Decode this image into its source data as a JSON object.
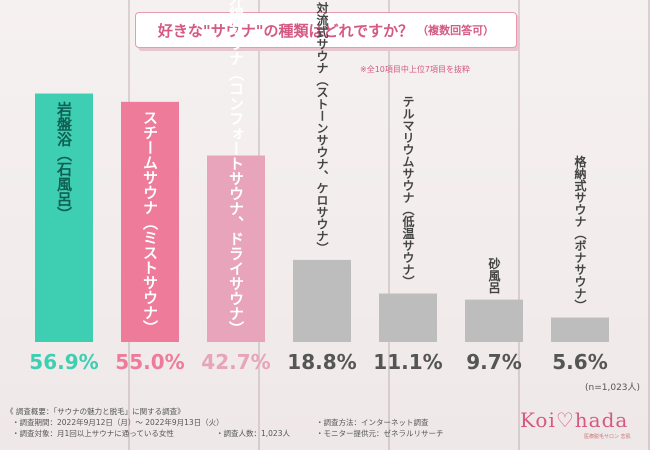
{
  "title": "好きな\"サウナ\"の種類はどれですか？",
  "title_sub": "（複数回答可）",
  "note": "※全10項目中上位7項目を抜粋",
  "sample": "(n=1,023人)",
  "colors": {
    "teal": "#3ecfb3",
    "pink": "#ee7b9a",
    "light_pink": "#e8a4ba",
    "gray": "#bdbdbd",
    "accent": "#d45a82"
  },
  "chart_data": {
    "type": "bar",
    "ylim": [
      0,
      60
    ],
    "categories": [
      "岩盤浴（石風呂）",
      "スチームサウナ（ミストサウナ）",
      "赤外線サウナ（コンフォートサウナ、ドライサウナ）",
      "対流式サウナ（ストーンサウナ、ケロサウナ）",
      "テルマリウムサウナ（低温サウナ）",
      "砂風呂",
      "格納式サウナ（ボナサウナ）"
    ],
    "values": [
      56.9,
      55.0,
      42.7,
      18.8,
      11.1,
      9.7,
      5.6
    ],
    "value_labels": [
      "56.9%",
      "55.0%",
      "42.7%",
      "18.8%",
      "11.1%",
      "9.7%",
      "5.6%"
    ],
    "bar_colors": [
      "teal",
      "pink",
      "light_pink",
      "gray",
      "gray",
      "gray",
      "gray"
    ]
  },
  "footer": {
    "heading": "《 調査概要：「サウナの魅力と脱毛」に関する調査》",
    "period": "・調査期間：2022年9月12日（月）〜 2022年9月13日（火）",
    "method": "・調査方法：インターネット調査",
    "target": "・調査対象：月1回以上サウナに通っている女性",
    "count": "・調査人数：1,023人",
    "provider": "・モニター提供元：ゼネラルリサーチ"
  },
  "logo": {
    "text": "Koi♡hada",
    "tag": "医療脱毛サロン 恋肌"
  }
}
